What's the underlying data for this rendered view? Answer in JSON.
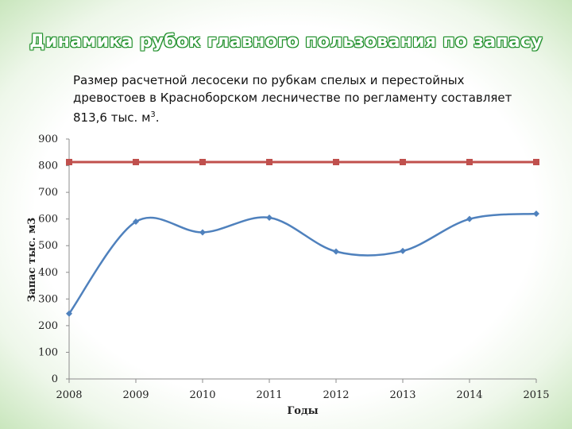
{
  "slide": {
    "title": "Динамика рубок главного пользования по запасу",
    "subtitle_main": "Размер расчетной лесосеки по рубкам спелых и перестойных древостоев в Красноборском лесничестве по регламенту составляет 813,6 тыс. м",
    "subtitle_sup": "3",
    "subtitle_end": "."
  },
  "colors": {
    "series_actual": "#4f81bd",
    "series_norm": "#c0504d",
    "axis": "#8c8c8c"
  },
  "chart_data": {
    "type": "line",
    "x": [
      "2008",
      "2009",
      "2010",
      "2011",
      "2012",
      "2013",
      "2014",
      "2015"
    ],
    "series": [
      {
        "values": [
          245,
          590,
          550,
          605,
          478,
          480,
          600,
          620
        ],
        "smooth": true,
        "marker": "diamond"
      },
      {
        "values": [
          813.6,
          813.6,
          813.6,
          813.6,
          813.6,
          813.6,
          813.6,
          813.6
        ],
        "smooth": false,
        "marker": "square"
      }
    ],
    "yticks": [
      "0",
      "100",
      "200",
      "300",
      "400",
      "500",
      "600",
      "700",
      "800",
      "900"
    ],
    "xlabel": "Годы",
    "ylabel": "Запас тыс. м3",
    "ylim": [
      0,
      900
    ],
    "grid": false
  }
}
